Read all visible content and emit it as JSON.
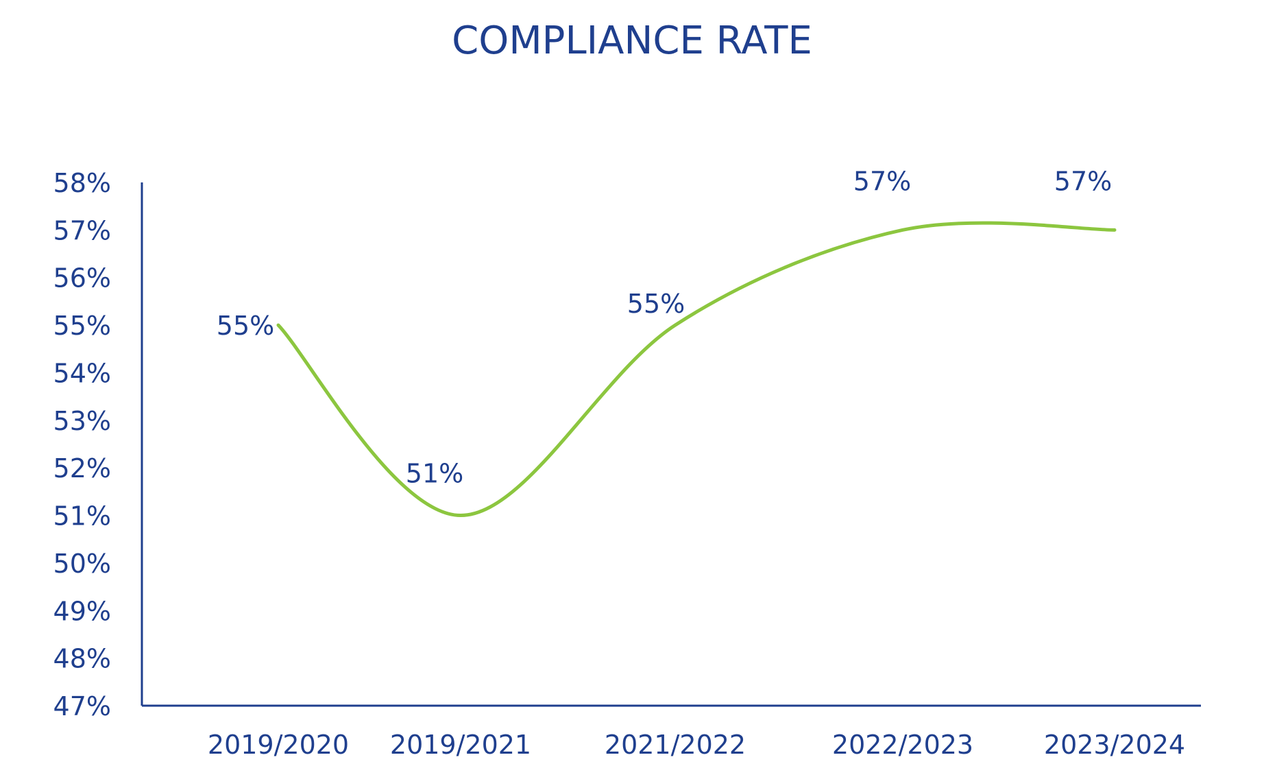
{
  "chart_data": {
    "type": "line",
    "title": "COMPLIANCE RATE",
    "xlabel": "",
    "ylabel": "",
    "categories": [
      "2019/2020",
      "2019/2021",
      "2021/2022",
      "2022/2023",
      "2023/2024"
    ],
    "series": [
      {
        "values": [
          55,
          51,
          55,
          57,
          57
        ],
        "point_labels": [
          "55%",
          "51%",
          "55%",
          "57%",
          "57%"
        ]
      }
    ],
    "y_ticks": [
      "47%",
      "48%",
      "49%",
      "50%",
      "51%",
      "52%",
      "53%",
      "54%",
      "55%",
      "56%",
      "57%",
      "58%"
    ],
    "ylim": [
      47,
      58
    ],
    "grid": false,
    "legend": "none",
    "smooth": true,
    "colors": {
      "text": "#1f3f8e",
      "axis": "#1f3f8e",
      "line": "#8cc63f"
    }
  }
}
